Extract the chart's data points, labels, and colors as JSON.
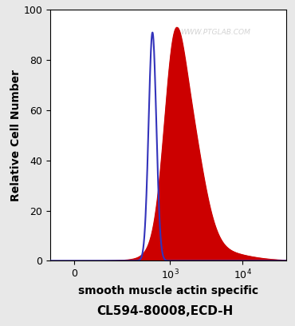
{
  "bg_color": "#e8e8e8",
  "plot_bg_color": "#ffffff",
  "blue_peak_height": 91,
  "red_peak_height": 93,
  "xmin": -100,
  "xmax": 40000,
  "ymin": 0,
  "ymax": 100,
  "xlabel": "smooth muscle actin specific",
  "subtitle": "CL594-80008,ECD-H",
  "ylabel": "Relative Cell Number",
  "watermark": "WWW.PTGLAB.COM",
  "blue_color": "#3333bb",
  "red_color": "#cc0000",
  "red_fill_color": "#cc0000",
  "yticks": [
    0,
    20,
    40,
    60,
    80,
    100
  ],
  "label_fontsize": 10,
  "subtitle_fontsize": 11,
  "linthresh": 150,
  "linscale": 0.45
}
